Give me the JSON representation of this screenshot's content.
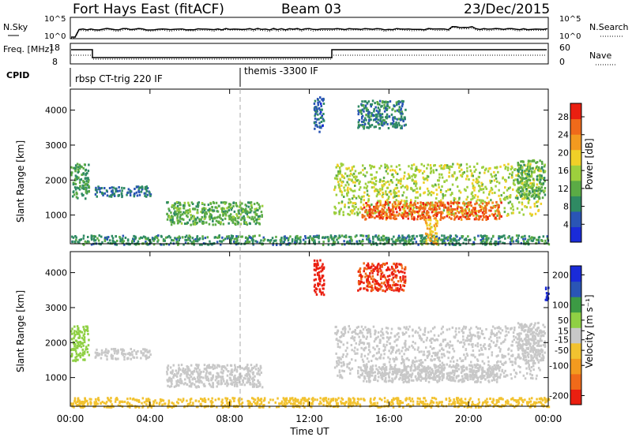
{
  "header": {
    "station": "Fort Hays East (fitACF)",
    "beam": "Beam 03",
    "date": "23/Dec/2015"
  },
  "top_panels": {
    "nsky_label": "N.Sky",
    "nsky_ticks": [
      "10^5",
      "10^0"
    ],
    "nsearch_label": "N.Search",
    "nsearch_ticks": [
      "10^5",
      "10^0"
    ],
    "freq_label": "Freq. [MHz]",
    "freq_ticks": [
      "18",
      "8"
    ],
    "nave_label": "Nave",
    "nave_ticks": [
      "60",
      "0"
    ],
    "cpid_label": "CPID",
    "cpid_modes": [
      {
        "label": "rbsp CT-trig 220 IF",
        "start_hour": 0,
        "end_hour": 8.5
      },
      {
        "label": "themis -3300 IF",
        "start_hour": 8.5,
        "end_hour": 24
      }
    ]
  },
  "chart_data": [
    {
      "type": "heatmap",
      "name": "power",
      "xlabel": "",
      "ylabel": "Slant Range [km]",
      "xlim": [
        0,
        24
      ],
      "ylim": [
        180,
        4600
      ],
      "y_ticks": [
        1000,
        2000,
        3000,
        4000
      ],
      "colorbar": {
        "label": "Power [dB]",
        "range": [
          0,
          31
        ],
        "ticks": [
          4,
          8,
          12,
          16,
          20,
          24,
          28
        ],
        "colors": [
          "#1a2bd8",
          "#2a55b5",
          "#2f8a63",
          "#5bab45",
          "#9dcf3d",
          "#f0d028",
          "#f39a1f",
          "#f06a1a",
          "#ea1f10"
        ]
      },
      "regions": [
        {
          "t": [
            0,
            0.9
          ],
          "r": [
            1500,
            2500
          ],
          "val": 10
        },
        {
          "t": [
            1.2,
            4.0
          ],
          "r": [
            1550,
            1850
          ],
          "val": 7
        },
        {
          "t": [
            4.8,
            9.6
          ],
          "r": [
            750,
            1400
          ],
          "val": 12
        },
        {
          "t": [
            0,
            24
          ],
          "r": [
            180,
            450
          ],
          "val": 9
        },
        {
          "t": [
            13.2,
            23.6
          ],
          "r": [
            1000,
            2500
          ],
          "val": 16
        },
        {
          "t": [
            14.6,
            21.6
          ],
          "r": [
            900,
            1400
          ],
          "val": 26
        },
        {
          "t": [
            17.8,
            18.4
          ],
          "r": [
            200,
            900
          ],
          "val": 20
        },
        {
          "t": [
            22.4,
            23.8
          ],
          "r": [
            1500,
            2600
          ],
          "val": 12
        },
        {
          "t": [
            12.2,
            12.7
          ],
          "r": [
            3400,
            4400
          ],
          "val": 6
        },
        {
          "t": [
            14.4,
            16.8
          ],
          "r": [
            3500,
            4300
          ],
          "val": 8
        }
      ]
    },
    {
      "type": "heatmap",
      "name": "velocity",
      "xlabel": "Time UT",
      "ylabel": "Slant Range [km]",
      "xlim": [
        0,
        24
      ],
      "ylim": [
        180,
        4600
      ],
      "x_ticks": [
        "00:00",
        "04:00",
        "08:00",
        "12:00",
        "16:00",
        "20:00",
        "00:00"
      ],
      "y_ticks": [
        1000,
        2000,
        3000,
        4000
      ],
      "colorbar": {
        "label": "Velocity [m s⁻¹]",
        "range": [
          -230,
          230
        ],
        "ticks": [
          200,
          100,
          50,
          15,
          -15,
          -50,
          -100,
          -200
        ],
        "colors": [
          "#ea1f10",
          "#f06a1a",
          "#f39a1f",
          "#f2c230",
          "#c8c8c8",
          "#8fd044",
          "#3c9a44",
          "#2a55b5",
          "#1a2bd8"
        ]
      },
      "regions": [
        {
          "t": [
            0,
            0.9
          ],
          "r": [
            1500,
            2500
          ],
          "val": 40
        },
        {
          "t": [
            1.2,
            4.0
          ],
          "r": [
            1550,
            1850
          ],
          "val": 20
        },
        {
          "t": [
            4.8,
            9.6
          ],
          "r": [
            750,
            1400
          ],
          "val": 0
        },
        {
          "t": [
            0,
            24
          ],
          "r": [
            180,
            450
          ],
          "val": -40
        },
        {
          "t": [
            13.2,
            23.6
          ],
          "r": [
            1000,
            2500
          ],
          "val": 0
        },
        {
          "t": [
            14.6,
            21.6
          ],
          "r": [
            900,
            1400
          ],
          "val": 0
        },
        {
          "t": [
            22.4,
            23.8
          ],
          "r": [
            1500,
            2600
          ],
          "val": 10
        },
        {
          "t": [
            12.2,
            12.7
          ],
          "r": [
            3400,
            4400
          ],
          "val": -200
        },
        {
          "t": [
            14.4,
            16.8
          ],
          "r": [
            3500,
            4300
          ],
          "val": -180
        },
        {
          "t": [
            23.8,
            24
          ],
          "r": [
            3200,
            3600
          ],
          "val": 200
        }
      ]
    }
  ]
}
